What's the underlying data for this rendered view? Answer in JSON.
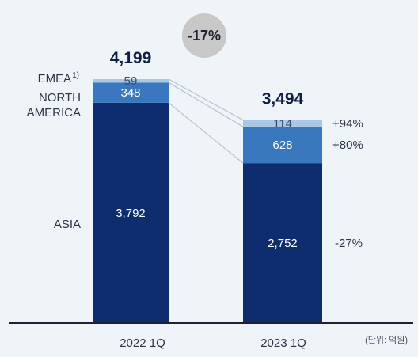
{
  "chart_data": {
    "type": "bar",
    "stacked": true,
    "categories": [
      "2022 1Q",
      "2023 1Q"
    ],
    "series": [
      {
        "name": "ASIA",
        "values": [
          3792,
          2752
        ],
        "value_labels": [
          "3,792",
          "2,752"
        ],
        "color": "#0d2d6e",
        "change": "-27%"
      },
      {
        "name": "NORTH AMERICA",
        "values": [
          348,
          628
        ],
        "value_labels": [
          "348",
          "628"
        ],
        "color": "#3978be",
        "change": "+80%"
      },
      {
        "name": "EMEA",
        "values": [
          59,
          114
        ],
        "value_labels": [
          "59",
          "114"
        ],
        "color": "#a9c8e6",
        "change": "+94%"
      }
    ],
    "series_display": {
      "emea": "EMEA",
      "emea_sup": "1)",
      "na_line1": "NORTH",
      "na_line2": "AMERICA",
      "asia": "ASIA"
    },
    "totals": [
      "4,199",
      "3,494"
    ],
    "total_change": "-17%",
    "unit_note": "(단위: 억원)",
    "ylim": [
      0,
      4199
    ],
    "colors": {
      "background": "#eef4f8",
      "badge": "#c8c8c8",
      "axis": "#1e2230",
      "connector": "#b9c3cf"
    }
  }
}
